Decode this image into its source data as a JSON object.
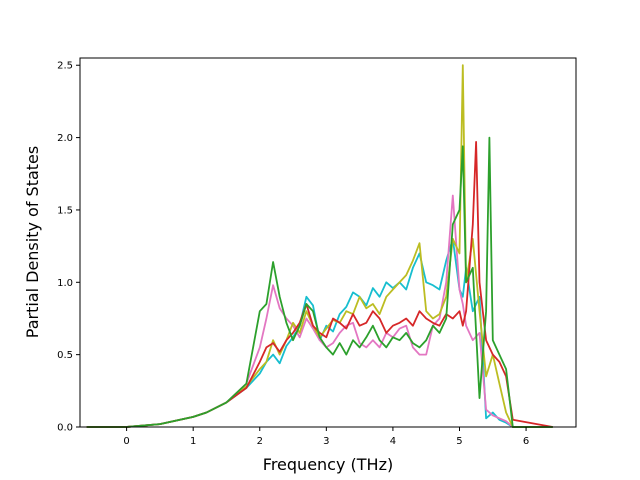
{
  "chart_data": {
    "type": "line",
    "title": "",
    "xlabel": "Frequency (THz)",
    "ylabel": "Partial Density of States",
    "xlim": [
      -0.7,
      6.75
    ],
    "ylim": [
      0,
      2.55
    ],
    "x_ticks": [
      0,
      1,
      2,
      3,
      4,
      5,
      6
    ],
    "x_tick_labels": [
      "0",
      "1",
      "2",
      "3",
      "4",
      "5",
      "6"
    ],
    "y_ticks": [
      0,
      0.5,
      1.0,
      1.5,
      2.0,
      2.5
    ],
    "y_tick_labels": [
      "0.0",
      "0.5",
      "1.0",
      "1.5",
      "2.0",
      "2.5"
    ],
    "grid": false,
    "legend": "none",
    "series": [
      {
        "color": "#17becf",
        "x": [
          -0.6,
          0,
          0.5,
          1,
          1.2,
          1.5,
          1.8,
          2,
          2.1,
          2.2,
          2.3,
          2.4,
          2.5,
          2.6,
          2.7,
          2.8,
          2.9,
          3,
          3.1,
          3.2,
          3.3,
          3.4,
          3.5,
          3.6,
          3.7,
          3.8,
          3.9,
          4,
          4.1,
          4.2,
          4.3,
          4.4,
          4.5,
          4.6,
          4.7,
          4.8,
          4.9,
          5,
          5.05,
          5.1,
          5.2,
          5.3,
          5.4,
          5.5,
          5.6,
          5.7,
          5.8,
          6.4
        ],
        "y": [
          0,
          0,
          0.02,
          0.07,
          0.1,
          0.17,
          0.27,
          0.37,
          0.45,
          0.5,
          0.44,
          0.56,
          0.62,
          0.7,
          0.9,
          0.84,
          0.6,
          0.7,
          0.66,
          0.78,
          0.83,
          0.93,
          0.9,
          0.84,
          0.96,
          0.9,
          1.0,
          0.96,
          1.0,
          0.95,
          1.1,
          1.2,
          1.0,
          0.98,
          0.95,
          1.15,
          1.3,
          0.95,
          0.9,
          1.1,
          0.8,
          0.9,
          0.06,
          0.1,
          0.05,
          0.03,
          0.0,
          0
        ]
      },
      {
        "color": "#e377c2",
        "x": [
          -0.6,
          0,
          0.5,
          1,
          1.2,
          1.5,
          1.8,
          2,
          2.1,
          2.2,
          2.3,
          2.4,
          2.5,
          2.6,
          2.7,
          2.8,
          2.9,
          3,
          3.1,
          3.2,
          3.3,
          3.4,
          3.5,
          3.6,
          3.7,
          3.8,
          3.9,
          4,
          4.1,
          4.2,
          4.3,
          4.4,
          4.5,
          4.6,
          4.7,
          4.8,
          4.9,
          5,
          5.05,
          5.1,
          5.2,
          5.3,
          5.4,
          5.5,
          5.6,
          5.7,
          5.8,
          6.4
        ],
        "y": [
          0,
          0,
          0.02,
          0.07,
          0.1,
          0.17,
          0.3,
          0.55,
          0.75,
          0.98,
          0.82,
          0.75,
          0.7,
          0.62,
          0.75,
          0.68,
          0.6,
          0.55,
          0.58,
          0.65,
          0.7,
          0.72,
          0.58,
          0.55,
          0.6,
          0.55,
          0.65,
          0.62,
          0.68,
          0.7,
          0.55,
          0.5,
          0.5,
          0.7,
          0.75,
          1.0,
          1.6,
          0.95,
          0.85,
          0.7,
          0.6,
          0.65,
          0.12,
          0.08,
          0.06,
          0.04,
          0.0,
          0
        ]
      },
      {
        "color": "#bcbd22",
        "x": [
          -0.6,
          0,
          0.5,
          1,
          1.2,
          1.5,
          1.8,
          2,
          2.1,
          2.2,
          2.3,
          2.4,
          2.5,
          2.6,
          2.7,
          2.8,
          2.9,
          3,
          3.1,
          3.2,
          3.3,
          3.4,
          3.5,
          3.6,
          3.7,
          3.8,
          3.9,
          4,
          4.1,
          4.2,
          4.3,
          4.4,
          4.5,
          4.6,
          4.7,
          4.8,
          4.9,
          5,
          5.05,
          5.1,
          5.2,
          5.3,
          5.4,
          5.5,
          5.6,
          5.7,
          5.8,
          6.4
        ],
        "y": [
          0,
          0,
          0.02,
          0.07,
          0.1,
          0.17,
          0.28,
          0.4,
          0.45,
          0.6,
          0.5,
          0.6,
          0.72,
          0.65,
          0.8,
          0.7,
          0.62,
          0.68,
          0.74,
          0.72,
          0.8,
          0.78,
          0.9,
          0.82,
          0.85,
          0.78,
          0.9,
          0.95,
          1.0,
          1.05,
          1.15,
          1.27,
          0.8,
          0.75,
          0.78,
          0.9,
          1.3,
          1.2,
          2.5,
          1.0,
          1.3,
          0.8,
          0.35,
          0.5,
          0.3,
          0.1,
          0.0,
          0
        ]
      },
      {
        "color": "#d62728",
        "x": [
          -0.6,
          0,
          0.5,
          1,
          1.2,
          1.5,
          1.8,
          2,
          2.1,
          2.2,
          2.3,
          2.4,
          2.5,
          2.6,
          2.7,
          2.8,
          2.9,
          3,
          3.1,
          3.2,
          3.3,
          3.4,
          3.5,
          3.6,
          3.7,
          3.8,
          3.9,
          4,
          4.1,
          4.2,
          4.3,
          4.4,
          4.5,
          4.6,
          4.7,
          4.8,
          4.9,
          5,
          5.05,
          5.1,
          5.2,
          5.25,
          5.3,
          5.4,
          5.5,
          5.6,
          5.7,
          5.8,
          6.4
        ],
        "y": [
          0,
          0,
          0.02,
          0.07,
          0.1,
          0.17,
          0.27,
          0.45,
          0.55,
          0.58,
          0.52,
          0.6,
          0.65,
          0.72,
          0.85,
          0.7,
          0.65,
          0.62,
          0.75,
          0.72,
          0.68,
          0.78,
          0.7,
          0.72,
          0.8,
          0.75,
          0.65,
          0.7,
          0.72,
          0.75,
          0.7,
          0.8,
          0.75,
          0.72,
          0.7,
          0.78,
          0.75,
          0.8,
          0.7,
          0.8,
          1.4,
          1.97,
          1.0,
          0.6,
          0.5,
          0.45,
          0.35,
          0.05,
          0
        ]
      },
      {
        "color": "#2ca02c",
        "x": [
          -0.6,
          0,
          0.5,
          1,
          1.2,
          1.5,
          1.8,
          2,
          2.1,
          2.2,
          2.3,
          2.4,
          2.5,
          2.6,
          2.7,
          2.8,
          2.9,
          3,
          3.1,
          3.2,
          3.3,
          3.4,
          3.5,
          3.6,
          3.7,
          3.8,
          3.9,
          4,
          4.1,
          4.2,
          4.3,
          4.4,
          4.5,
          4.6,
          4.7,
          4.8,
          4.9,
          5,
          5.05,
          5.1,
          5.2,
          5.3,
          5.4,
          5.45,
          5.5,
          5.6,
          5.7,
          5.8,
          6.4
        ],
        "y": [
          0,
          0,
          0.02,
          0.07,
          0.1,
          0.17,
          0.3,
          0.8,
          0.85,
          1.14,
          0.9,
          0.72,
          0.6,
          0.7,
          0.85,
          0.8,
          0.62,
          0.55,
          0.5,
          0.58,
          0.5,
          0.6,
          0.55,
          0.62,
          0.7,
          0.6,
          0.55,
          0.62,
          0.6,
          0.65,
          0.58,
          0.55,
          0.6,
          0.7,
          0.65,
          0.75,
          1.4,
          1.5,
          1.94,
          1.0,
          1.1,
          0.2,
          0.8,
          2.0,
          0.6,
          0.5,
          0.4,
          0.0,
          0
        ]
      }
    ]
  }
}
